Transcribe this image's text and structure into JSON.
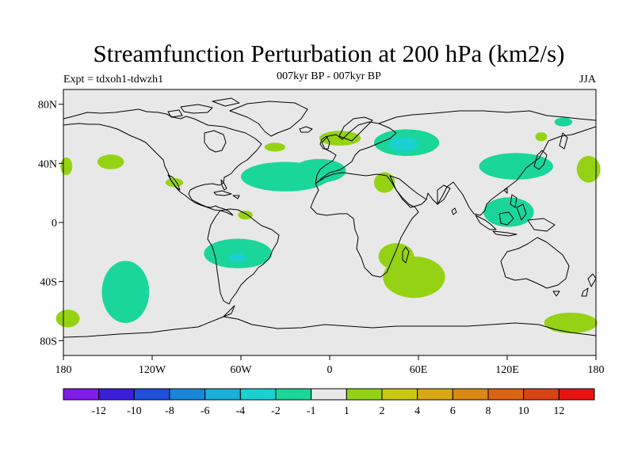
{
  "header": {
    "title": "Streamfunction Perturbation at 200 hPa (km2/s)",
    "subtitle": "007kyr BP - 007kyr BP",
    "expt": "Expt = tdxoh1-tdwzh1",
    "season": "JJA"
  },
  "map": {
    "lon_range": [
      -180,
      180
    ],
    "lat_range": [
      -90,
      90
    ],
    "ocean_color": "#e8e8e8",
    "coast_color": "#000000",
    "x_ticks": [
      {
        "value": -180,
        "label": "180"
      },
      {
        "value": -120,
        "label": "120W"
      },
      {
        "value": -60,
        "label": "60W"
      },
      {
        "value": 0,
        "label": "0"
      },
      {
        "value": 60,
        "label": "60E"
      },
      {
        "value": 120,
        "label": "120E"
      },
      {
        "value": 180,
        "label": "180"
      }
    ],
    "y_ticks": [
      {
        "value": 80,
        "label": "80N"
      },
      {
        "value": 40,
        "label": "40N"
      },
      {
        "value": 0,
        "label": "0"
      },
      {
        "value": -40,
        "label": "40S"
      },
      {
        "value": -80,
        "label": "80S"
      }
    ]
  },
  "colorbar": {
    "colors": [
      "#7f1de8",
      "#3a1ed8",
      "#1f4fd8",
      "#1a86d8",
      "#1ab0d8",
      "#1ad0d0",
      "#1ad69a",
      "#e8e8e8",
      "#96d214",
      "#c8c814",
      "#d8a814",
      "#d88814",
      "#d86414",
      "#d84414",
      "#e81414"
    ],
    "labels": [
      "-12",
      "-10",
      "-8",
      "-6",
      "-4",
      "-2",
      "-1",
      "1",
      "2",
      "4",
      "6",
      "8",
      "10",
      "12"
    ]
  },
  "chart_data": {
    "type": "contour-map",
    "title": "Streamfunction Perturbation at 200 hPa (km2/s)",
    "subtitle": "007kyr BP - 007kyr BP",
    "season": "JJA",
    "levels": [
      -12,
      -10,
      -8,
      -6,
      -4,
      -2,
      -1,
      1,
      2,
      4,
      6,
      8,
      10,
      12
    ],
    "regions": [
      {
        "sign": "negative",
        "level": -1,
        "lon": -30,
        "lat": 31,
        "rlon": 30,
        "rlat": 10
      },
      {
        "sign": "negative",
        "level": -1,
        "lon": -7,
        "lat": 35,
        "rlon": 18,
        "rlat": 8
      },
      {
        "sign": "negative",
        "level": -1,
        "lon": 52,
        "lat": 54,
        "rlon": 22,
        "rlat": 9
      },
      {
        "sign": "negative",
        "level": -2,
        "lon": 50,
        "lat": 53,
        "rlon": 10,
        "rlat": 5
      },
      {
        "sign": "negative",
        "level": -1,
        "lon": 126,
        "lat": 38,
        "rlon": 25,
        "rlat": 9
      },
      {
        "sign": "negative",
        "level": -1,
        "lon": 121,
        "lat": 7,
        "rlon": 17,
        "rlat": 10
      },
      {
        "sign": "negative",
        "level": -1,
        "lon": -62,
        "lat": -21,
        "rlon": 23,
        "rlat": 10
      },
      {
        "sign": "negative",
        "level": -2,
        "lon": -62,
        "lat": -24,
        "rlon": 6,
        "rlat": 3
      },
      {
        "sign": "negative",
        "level": -1,
        "lon": -138,
        "lat": -47,
        "rlon": 16,
        "rlat": 21
      },
      {
        "sign": "negative",
        "level": -1,
        "lon": 158,
        "lat": 68,
        "rlon": 6,
        "rlat": 3
      },
      {
        "sign": "positive",
        "level": 1,
        "lon": -148,
        "lat": 41,
        "rlon": 9,
        "rlat": 5
      },
      {
        "sign": "positive",
        "level": 1,
        "lon": -178,
        "lat": 38,
        "rlon": 4,
        "rlat": 6
      },
      {
        "sign": "positive",
        "level": 1,
        "lon": -105,
        "lat": 27,
        "rlon": 6,
        "rlat": 3
      },
      {
        "sign": "positive",
        "level": 1,
        "lon": -57,
        "lat": 5,
        "rlon": 5,
        "rlat": 3
      },
      {
        "sign": "positive",
        "level": 1,
        "lon": -37,
        "lat": 51,
        "rlon": 7,
        "rlat": 3
      },
      {
        "sign": "positive",
        "level": 1,
        "lon": 7,
        "lat": 57,
        "rlon": 14,
        "rlat": 5
      },
      {
        "sign": "positive",
        "level": 1,
        "lon": 37,
        "lat": 27,
        "rlon": 7,
        "rlat": 7
      },
      {
        "sign": "positive",
        "level": 1,
        "lon": 57,
        "lat": -37,
        "rlon": 21,
        "rlat": 14
      },
      {
        "sign": "positive",
        "level": 1,
        "lon": 45,
        "lat": -23,
        "rlon": 12,
        "rlat": 9
      },
      {
        "sign": "positive",
        "level": 1,
        "lon": 175,
        "lat": 36,
        "rlon": 8,
        "rlat": 9
      },
      {
        "sign": "positive",
        "level": 1,
        "lon": 163,
        "lat": -68,
        "rlon": 18,
        "rlat": 7
      },
      {
        "sign": "positive",
        "level": 1,
        "lon": -177,
        "lat": -65,
        "rlon": 8,
        "rlat": 6
      },
      {
        "sign": "positive",
        "level": 1,
        "lon": 143,
        "lat": 58,
        "rlon": 4,
        "rlat": 3
      }
    ]
  }
}
